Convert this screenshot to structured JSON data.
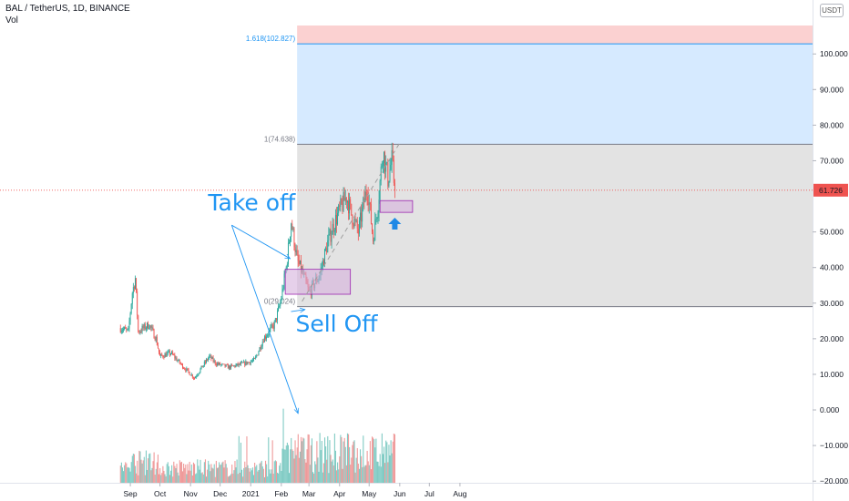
{
  "header": {
    "symbol_title": "BAL / TetherUS, 1D, BINANCE",
    "volume_label": "Vol",
    "currency": "USDT"
  },
  "chart_data": {
    "type": "candlestick",
    "title": "BAL / TetherUS, 1D, BINANCE",
    "price_axis": {
      "ticks": [
        100,
        90,
        80,
        70,
        60,
        50,
        40,
        30,
        20,
        10,
        0,
        -10,
        -20
      ],
      "tick_labels": [
        "100.000",
        "90.000",
        "80.000",
        "70.000",
        "60.000",
        "50.000",
        "40.000",
        "30.000",
        "20.000",
        "10.000",
        "0.000",
        "−10.000",
        "−20.000"
      ],
      "range": [
        -22,
        105
      ]
    },
    "time_axis": {
      "labels": [
        "Sep",
        "Oct",
        "Nov",
        "Dec",
        "2021",
        "Feb",
        "Mar",
        "Apr",
        "May",
        "Jun",
        "Jul",
        "Aug"
      ]
    },
    "current_price": {
      "value": 61.726,
      "label": "61.726"
    },
    "price_path": [
      {
        "date": "2020-08-22",
        "close": 23
      },
      {
        "date": "2020-08-30",
        "close": 22
      },
      {
        "date": "2020-09-03",
        "close": 33
      },
      {
        "date": "2020-09-06",
        "close": 37
      },
      {
        "date": "2020-09-09",
        "close": 22
      },
      {
        "date": "2020-09-20",
        "close": 24
      },
      {
        "date": "2020-09-27",
        "close": 20
      },
      {
        "date": "2020-10-01",
        "close": 15
      },
      {
        "date": "2020-10-12",
        "close": 16
      },
      {
        "date": "2020-10-25",
        "close": 12
      },
      {
        "date": "2020-11-05",
        "close": 9
      },
      {
        "date": "2020-11-20",
        "close": 15
      },
      {
        "date": "2020-11-27",
        "close": 13
      },
      {
        "date": "2020-12-10",
        "close": 12
      },
      {
        "date": "2020-12-25",
        "close": 13
      },
      {
        "date": "2021-01-05",
        "close": 14
      },
      {
        "date": "2021-01-14",
        "close": 20
      },
      {
        "date": "2021-01-25",
        "close": 24
      },
      {
        "date": "2021-01-31",
        "close": 30
      },
      {
        "date": "2021-02-06",
        "close": 40
      },
      {
        "date": "2021-02-11",
        "close": 53
      },
      {
        "date": "2021-02-17",
        "close": 42
      },
      {
        "date": "2021-02-23",
        "close": 38
      },
      {
        "date": "2021-03-01",
        "close": 33
      },
      {
        "date": "2021-03-12",
        "close": 38
      },
      {
        "date": "2021-03-20",
        "close": 47
      },
      {
        "date": "2021-03-26",
        "close": 52
      },
      {
        "date": "2021-04-01",
        "close": 56
      },
      {
        "date": "2021-04-08",
        "close": 60
      },
      {
        "date": "2021-04-13",
        "close": 55
      },
      {
        "date": "2021-04-20",
        "close": 50
      },
      {
        "date": "2021-04-29",
        "close": 63
      },
      {
        "date": "2021-05-05",
        "close": 48
      },
      {
        "date": "2021-05-10",
        "close": 58
      },
      {
        "date": "2021-05-15",
        "close": 73
      },
      {
        "date": "2021-05-20",
        "close": 65
      },
      {
        "date": "2021-05-24",
        "close": 70
      },
      {
        "date": "2021-05-27",
        "close": 61.726
      }
    ],
    "fibonacci": {
      "levels": [
        {
          "ratio": 1.618,
          "value": 102.827,
          "label": "1.618(102.827)"
        },
        {
          "ratio": 1,
          "value": 74.638,
          "label": "1(74.638)"
        },
        {
          "ratio": 0,
          "value": 29.024,
          "label": "0(29.024)"
        }
      ],
      "extension_top": 108,
      "start_date": "2021-02-17",
      "colors": {
        "top_zone": "#fbd1d1",
        "mid_zone": "#d6eaff",
        "base_zone": "#e3e3e3",
        "line": "#2196f3"
      }
    },
    "zones": [
      {
        "name": "take-off-zone",
        "date_start": "2021-02-05",
        "date_end": "2021-04-12",
        "price_low": 32.5,
        "price_high": 39.5
      },
      {
        "name": "support-zone",
        "date_start": "2021-05-12",
        "date_end": "2021-06-14",
        "price_low": 55.5,
        "price_high": 58.8
      }
    ],
    "annotations": [
      {
        "text": "Take off",
        "date": "2021-01-02",
        "price": 56
      },
      {
        "text": "Sell Off",
        "date": "2021-03-29",
        "price": 22
      }
    ],
    "colors": {
      "up": "#26a69a",
      "down": "#ef5350",
      "volume_up": "#80cbc4",
      "volume_down": "#ef9a9a",
      "accent": "#2196f3",
      "zone_fill": "#d5b0dc",
      "zone_border": "#9c27b0"
    }
  }
}
